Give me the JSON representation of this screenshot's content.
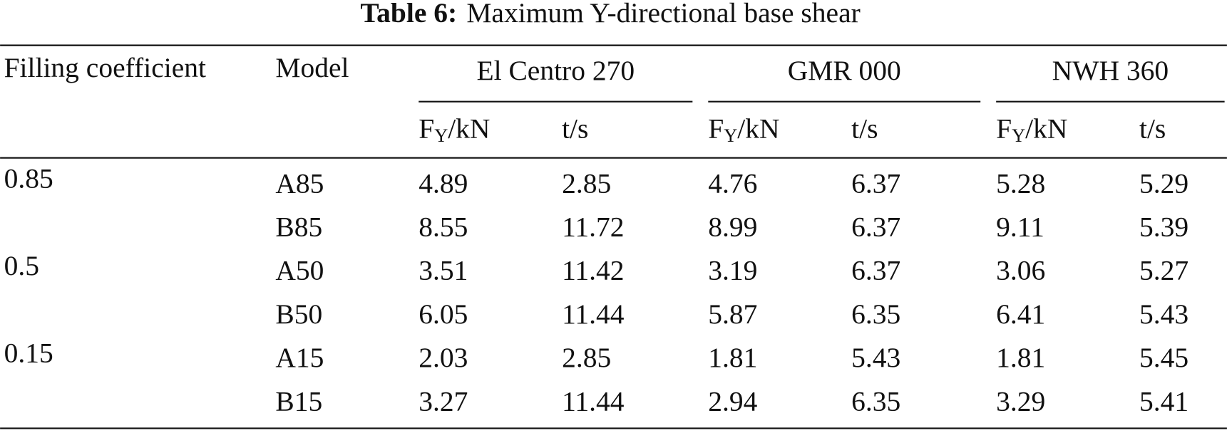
{
  "caption": {
    "label": "Table 6:",
    "text": "Maximum Y-directional base shear"
  },
  "header": {
    "coefficient": "Filling coefficient",
    "model": "Model",
    "groups": [
      "El Centro 270",
      "GMR 000",
      "NWH 360"
    ],
    "subheaders": [
      {
        "main": "F",
        "sub": "Y",
        "rest": "/kN"
      },
      {
        "main": "t/s"
      },
      {
        "main": "F",
        "sub": "Y",
        "rest": "/kN"
      },
      {
        "main": "t/s"
      },
      {
        "main": "F",
        "sub": "Y",
        "rest": "/kN"
      },
      {
        "main": "t/s"
      }
    ]
  },
  "body": [
    {
      "coefficient": "0.85",
      "rows": [
        [
          "A85",
          "4.89",
          "2.85",
          "4.76",
          "6.37",
          "5.28",
          "5.29"
        ],
        [
          "B85",
          "8.55",
          "11.72",
          "8.99",
          "6.37",
          "9.11",
          "5.39"
        ]
      ]
    },
    {
      "coefficient": "0.5",
      "rows": [
        [
          "A50",
          "3.51",
          "11.42",
          "3.19",
          "6.37",
          "3.06",
          "5.27"
        ],
        [
          "B50",
          "6.05",
          "11.44",
          "5.87",
          "6.35",
          "6.41",
          "5.43"
        ]
      ]
    },
    {
      "coefficient": "0.15",
      "rows": [
        [
          "A15",
          "2.03",
          "2.85",
          "1.81",
          "5.43",
          "1.81",
          "5.45"
        ],
        [
          "B15",
          "3.27",
          "11.44",
          "2.94",
          "6.35",
          "3.29",
          "5.41"
        ]
      ]
    }
  ]
}
